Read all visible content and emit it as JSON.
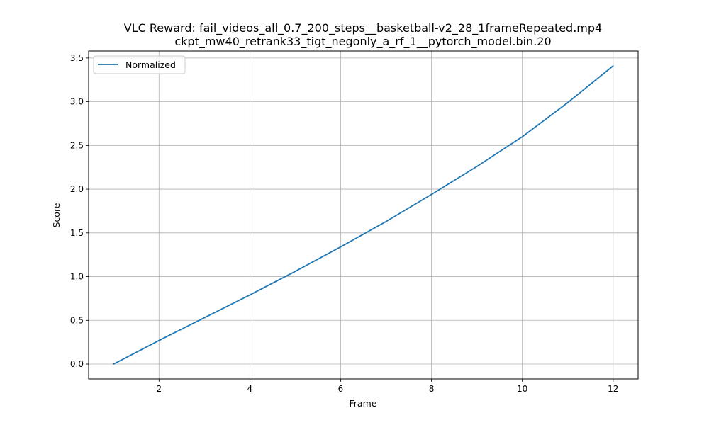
{
  "chart_data": {
    "type": "line",
    "title_line1": "VLC Reward: fail_videos_all_0.7_200_steps__basketball-v2_28_1frameRepeated.mp4",
    "title_line2": "ckpt_mw40_retrank33_tigt_negonly_a_rf_1__pytorch_model.bin.20",
    "xlabel": "Frame",
    "ylabel": "Score",
    "xlim": [
      0.45,
      12.55
    ],
    "ylim": [
      -0.17,
      3.58
    ],
    "xticks": [
      2,
      4,
      6,
      8,
      10,
      12
    ],
    "xtick_labels": [
      "2",
      "4",
      "6",
      "8",
      "10",
      "12"
    ],
    "yticks": [
      0.0,
      0.5,
      1.0,
      1.5,
      2.0,
      2.5,
      3.0,
      3.5
    ],
    "ytick_labels": [
      "0.0",
      "0.5",
      "1.0",
      "1.5",
      "2.0",
      "2.5",
      "3.0",
      "3.5"
    ],
    "grid": true,
    "legend_position": "top-left",
    "series": [
      {
        "name": "Normalized",
        "color": "#1f77b4",
        "x": [
          1,
          2,
          3,
          4,
          5,
          6,
          7,
          8,
          9,
          10,
          11,
          12
        ],
        "y": [
          0.0,
          0.27,
          0.53,
          0.79,
          1.06,
          1.34,
          1.63,
          1.94,
          2.26,
          2.6,
          2.99,
          3.41
        ]
      }
    ]
  }
}
